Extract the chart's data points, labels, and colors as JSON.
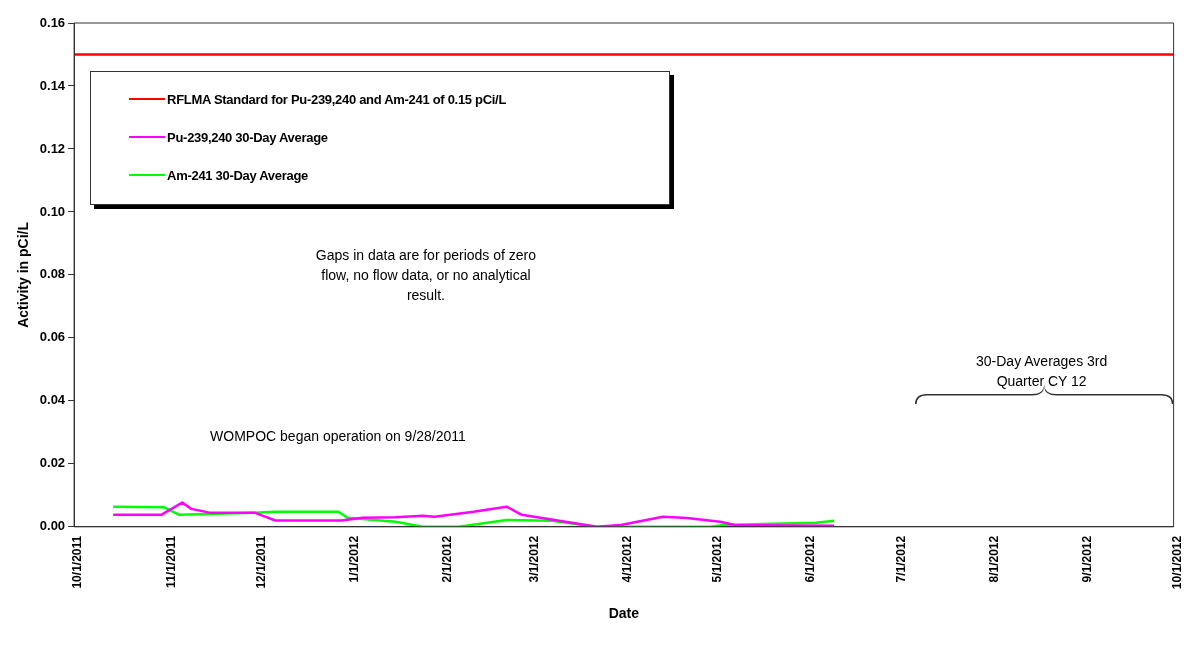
{
  "chart_data": {
    "type": "line",
    "xlabel": "Date",
    "ylabel": "Activity in pCi/L",
    "xlim": [
      "2011-10-01",
      "2012-10-01"
    ],
    "xticks": [
      {
        "value": "2011-10-01",
        "label": "10/1/2011"
      },
      {
        "value": "2011-11-01",
        "label": "11/1/2011"
      },
      {
        "value": "2011-12-01",
        "label": "12/1/2011"
      },
      {
        "value": "2012-01-01",
        "label": "1/1/2012"
      },
      {
        "value": "2012-02-01",
        "label": "2/1/2012"
      },
      {
        "value": "2012-03-01",
        "label": "3/1/2012"
      },
      {
        "value": "2012-04-01",
        "label": "4/1/2012"
      },
      {
        "value": "2012-05-01",
        "label": "5/1/2012"
      },
      {
        "value": "2012-06-01",
        "label": "6/1/2012"
      },
      {
        "value": "2012-07-01",
        "label": "7/1/2012"
      },
      {
        "value": "2012-08-01",
        "label": "8/1/2012"
      },
      {
        "value": "2012-09-01",
        "label": "9/1/2012"
      },
      {
        "value": "2012-10-01",
        "label": "10/1/2012"
      }
    ],
    "ylim": [
      0,
      0.16
    ],
    "yticks": [
      {
        "value": 0,
        "label": "0.00"
      },
      {
        "value": 0.02,
        "label": "0.02"
      },
      {
        "value": 0.04,
        "label": "0.04"
      },
      {
        "value": 0.06,
        "label": "0.06"
      },
      {
        "value": 0.08,
        "label": "0.08"
      },
      {
        "value": 0.1,
        "label": "0.10"
      },
      {
        "value": 0.12,
        "label": "0.12"
      },
      {
        "value": 0.14,
        "label": "0.14"
      },
      {
        "value": 0.16,
        "label": "0.16"
      }
    ],
    "grid": false,
    "legend": "top left",
    "marker": "none",
    "line_style": "solid",
    "series": [
      {
        "name": "RFLMA Standard for Pu-239,240 and Am-241 of 0.15 pCi/L",
        "color": "#ff0000",
        "x": [
          "2011-10-01",
          "2012-10-01"
        ],
        "values": [
          0.15,
          0.15
        ]
      },
      {
        "name": "Pu-239,240 30-Day Average",
        "color": "#ff00ff",
        "x": [
          "2011-10-14",
          "2011-10-30",
          "2011-11-06",
          "2011-11-09",
          "2011-11-15",
          "2011-11-30",
          "2011-12-07",
          "2011-12-29",
          "2012-01-05",
          "2012-01-16",
          "2012-01-25",
          "2012-01-29",
          "2012-02-11",
          "2012-02-22",
          "2012-02-27",
          "2012-03-23",
          "2012-03-31",
          "2012-04-14",
          "2012-04-22",
          "2012-05-03",
          "2012-05-08",
          "2012-06-10"
        ],
        "values": [
          0.0038,
          0.0038,
          0.0077,
          0.0057,
          0.0045,
          0.0045,
          0.002,
          0.002,
          0.0029,
          0.003,
          0.0035,
          0.0032,
          0.0048,
          0.0064,
          0.0038,
          0,
          0.0006,
          0.0032,
          0.0028,
          0.0016,
          0.0006,
          0.0003
        ]
      },
      {
        "name": "Am-241 30-Day Average",
        "color": "#00ff00",
        "x": [
          "2011-10-14",
          "2011-10-31",
          "2011-11-05",
          "2011-11-30",
          "2011-12-07",
          "2011-12-28",
          "2011-12-31",
          "2012-01-16",
          "2012-01-25",
          "2012-02-06",
          "2012-02-22",
          "2012-03-08",
          "2012-03-23",
          "2012-04-30",
          "2012-05-04",
          "2012-05-21",
          "2012-06-04",
          "2012-06-10"
        ],
        "values": [
          0.0064,
          0.0062,
          0.0038,
          0.0045,
          0.0048,
          0.0048,
          0.0029,
          0.0016,
          0,
          0,
          0.0022,
          0.0019,
          0,
          0,
          0.0006,
          0.001,
          0.0013,
          0.0019
        ]
      }
    ],
    "annotations": [
      "Gaps in data are for periods of zero flow, no flow data, or no analytical result.",
      "WOMPOC began operation  on 9/28/2011",
      "30-Day  Averages 3rd Quarter CY 12"
    ]
  }
}
